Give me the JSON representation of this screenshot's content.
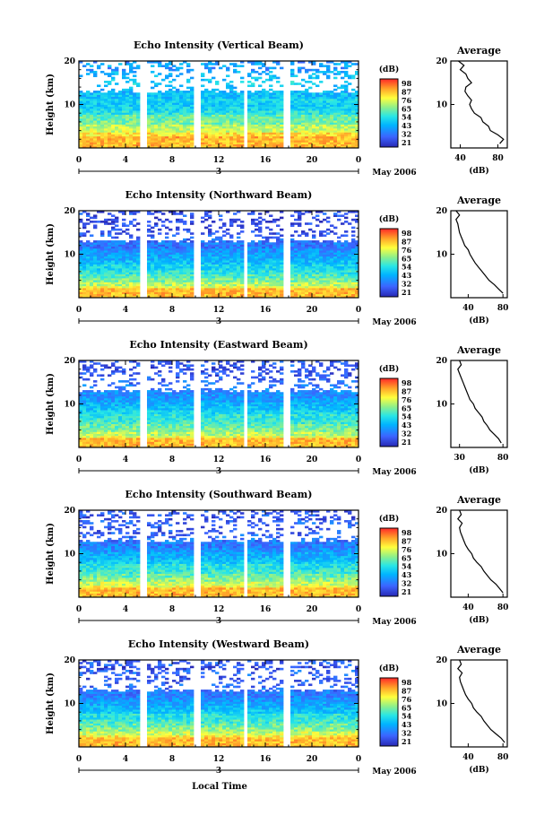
{
  "chart_data": {
    "type": "heatmap",
    "panels": [
      {
        "title": "Echo Intensity (Vertical Beam)",
        "avg_profile": [
          [
            1,
            82
          ],
          [
            2,
            86
          ],
          [
            3,
            80
          ],
          [
            4,
            72
          ],
          [
            5,
            70
          ],
          [
            6,
            64
          ],
          [
            7,
            62
          ],
          [
            8,
            55
          ],
          [
            9,
            52
          ],
          [
            10,
            50
          ],
          [
            11,
            52
          ],
          [
            12,
            48
          ],
          [
            13,
            45
          ],
          [
            14,
            46
          ],
          [
            15,
            52
          ],
          [
            16,
            48
          ],
          [
            17,
            46
          ],
          [
            18,
            40
          ],
          [
            19,
            44
          ],
          [
            20,
            38
          ]
        ],
        "avg_xlim": [
          30,
          90
        ],
        "avg_xticks": [
          "40",
          "80"
        ]
      },
      {
        "title": "Echo Intensity (Northward Beam)",
        "avg_profile": [
          [
            1,
            80
          ],
          [
            2,
            75
          ],
          [
            3,
            70
          ],
          [
            4,
            64
          ],
          [
            5,
            60
          ],
          [
            6,
            56
          ],
          [
            7,
            52
          ],
          [
            8,
            48
          ],
          [
            9,
            45
          ],
          [
            10,
            42
          ],
          [
            11,
            40
          ],
          [
            12,
            36
          ],
          [
            13,
            34
          ],
          [
            14,
            32
          ],
          [
            15,
            30
          ],
          [
            16,
            29
          ],
          [
            17,
            28
          ],
          [
            18,
            26
          ],
          [
            19,
            30
          ],
          [
            20,
            26
          ]
        ],
        "avg_xlim": [
          20,
          85
        ],
        "avg_xticks": [
          "40",
          "80"
        ]
      },
      {
        "title": "Echo Intensity (Eastward Beam)",
        "avg_profile": [
          [
            1,
            78
          ],
          [
            2,
            75
          ],
          [
            3,
            70
          ],
          [
            4,
            65
          ],
          [
            5,
            62
          ],
          [
            6,
            58
          ],
          [
            7,
            56
          ],
          [
            8,
            52
          ],
          [
            9,
            48
          ],
          [
            10,
            46
          ],
          [
            11,
            42
          ],
          [
            12,
            40
          ],
          [
            13,
            38
          ],
          [
            14,
            36
          ],
          [
            15,
            34
          ],
          [
            16,
            32
          ],
          [
            17,
            30
          ],
          [
            18,
            28
          ],
          [
            19,
            32
          ],
          [
            20,
            30
          ]
        ],
        "avg_xlim": [
          20,
          85
        ],
        "avg_xticks": [
          "30",
          "80"
        ]
      },
      {
        "title": "Echo Intensity (Southward Beam)",
        "avg_profile": [
          [
            1,
            80
          ],
          [
            2,
            76
          ],
          [
            3,
            72
          ],
          [
            4,
            66
          ],
          [
            5,
            62
          ],
          [
            6,
            58
          ],
          [
            7,
            55
          ],
          [
            8,
            50
          ],
          [
            9,
            46
          ],
          [
            10,
            44
          ],
          [
            11,
            40
          ],
          [
            12,
            37
          ],
          [
            13,
            35
          ],
          [
            14,
            33
          ],
          [
            15,
            31
          ],
          [
            16,
            30
          ],
          [
            17,
            33
          ],
          [
            18,
            28
          ],
          [
            19,
            32
          ],
          [
            20,
            30
          ]
        ],
        "avg_xlim": [
          20,
          85
        ],
        "avg_xticks": [
          "40",
          "80"
        ]
      },
      {
        "title": "Echo Intensity (Westward Beam)",
        "avg_profile": [
          [
            1,
            82
          ],
          [
            2,
            78
          ],
          [
            3,
            72
          ],
          [
            4,
            66
          ],
          [
            5,
            62
          ],
          [
            6,
            58
          ],
          [
            7,
            55
          ],
          [
            8,
            50
          ],
          [
            9,
            46
          ],
          [
            10,
            44
          ],
          [
            11,
            40
          ],
          [
            12,
            37
          ],
          [
            13,
            35
          ],
          [
            14,
            33
          ],
          [
            15,
            31
          ],
          [
            16,
            30
          ],
          [
            17,
            33
          ],
          [
            18,
            28
          ],
          [
            19,
            32
          ],
          [
            20,
            30
          ]
        ],
        "avg_xlim": [
          20,
          85
        ],
        "avg_xticks": [
          "40",
          "80"
        ]
      }
    ],
    "ylabel": "Height (km)",
    "y_ticks": [
      "20",
      "10"
    ],
    "ylim": [
      0,
      20
    ],
    "x_ticks": [
      "0",
      "4",
      "8",
      "12",
      "16",
      "20",
      "0"
    ],
    "xlim": [
      0,
      24
    ],
    "date_day": "3",
    "date_label": "May 2006",
    "xlabel": "Local Time",
    "colorbar_label": "(dB)",
    "colorbar_ticks": [
      "98",
      "87",
      "76",
      "65",
      "54",
      "43",
      "32",
      "21"
    ],
    "vmin": 21,
    "vmax": 98,
    "avg_title": "Average",
    "avg_xlabel": "(dB)",
    "data_gaps_hours": [
      [
        5.2,
        5.7
      ],
      [
        9.8,
        10.5
      ],
      [
        14.1,
        14.6
      ],
      [
        17.5,
        18.0
      ]
    ]
  }
}
